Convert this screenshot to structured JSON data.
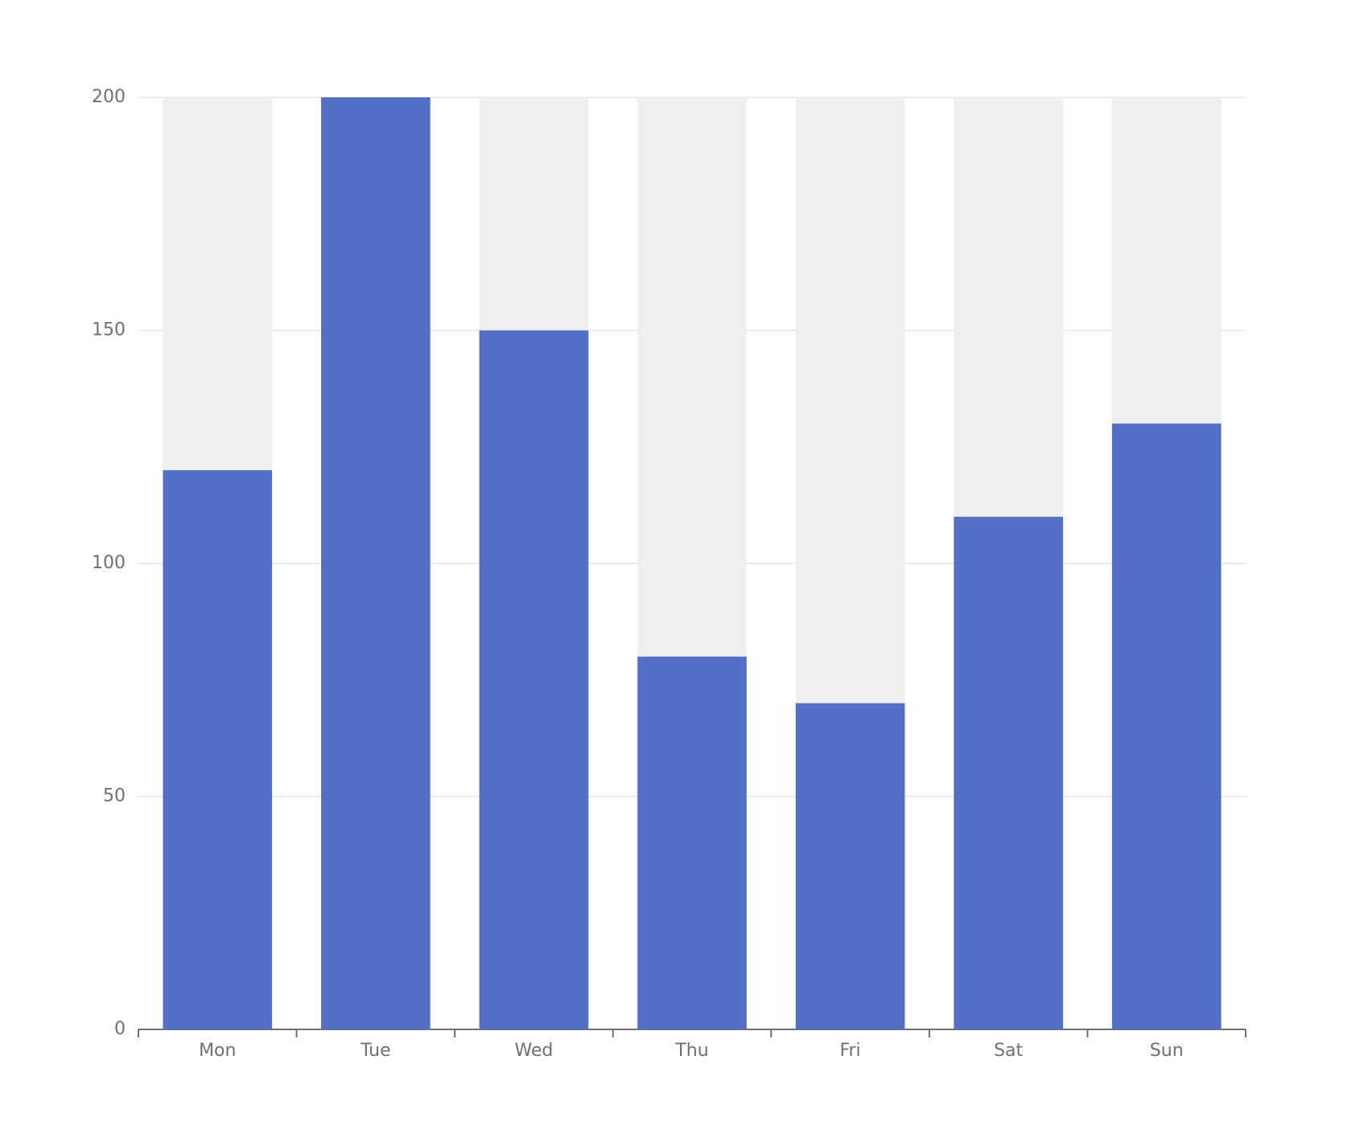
{
  "chart_data": {
    "type": "bar",
    "categories": [
      "Mon",
      "Tue",
      "Wed",
      "Thu",
      "Fri",
      "Sat",
      "Sun"
    ],
    "values": [
      120,
      200,
      150,
      80,
      70,
      110,
      130
    ],
    "color": "#5470c6",
    "show_background": true,
    "background_color": "#efefef",
    "ylim": [
      0,
      200
    ],
    "yticks": [
      0,
      50,
      100,
      150,
      200
    ],
    "grid": true
  }
}
